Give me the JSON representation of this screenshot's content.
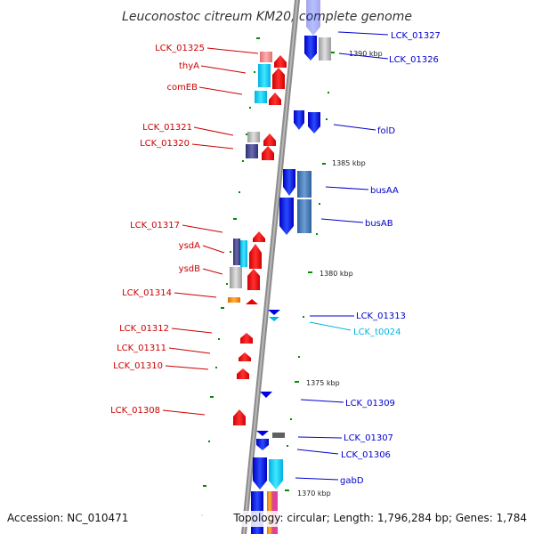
{
  "title": "Leuconostoc citreum KM20, complete genome",
  "footer": {
    "accession": "Accession: NC_010471",
    "topology": "Topology: circular; Length: 1,796,284 bp; Genes: 1,784"
  },
  "colors": {
    "backbone": "#8c8c8c",
    "forward_gene": "#0000e6",
    "reverse_gene": "#e60000",
    "leader": "#cc0000",
    "leader_right": "#0000cc",
    "trna": "#00b4e6",
    "tick": "#008c00"
  },
  "scale_labels": [
    "1390 kbp",
    "1385 kbp",
    "1380 kbp",
    "1375 kbp",
    "1370 kbp"
  ],
  "left_labels": [
    "LCK_01325",
    "thyA",
    "comEB",
    "LCK_01321",
    "LCK_01320",
    "LCK_01317",
    "ysdA",
    "ysdB",
    "LCK_01314",
    "LCK_01312",
    "LCK_01311",
    "LCK_01310",
    "LCK_01308"
  ],
  "right_labels": [
    "LCK_01327",
    "LCK_01326",
    "folD",
    "busAA",
    "busAB",
    "LCK_01313",
    "LCK_t0024",
    "LCK_01309",
    "LCK_01307",
    "LCK_01306",
    "gabD"
  ]
}
